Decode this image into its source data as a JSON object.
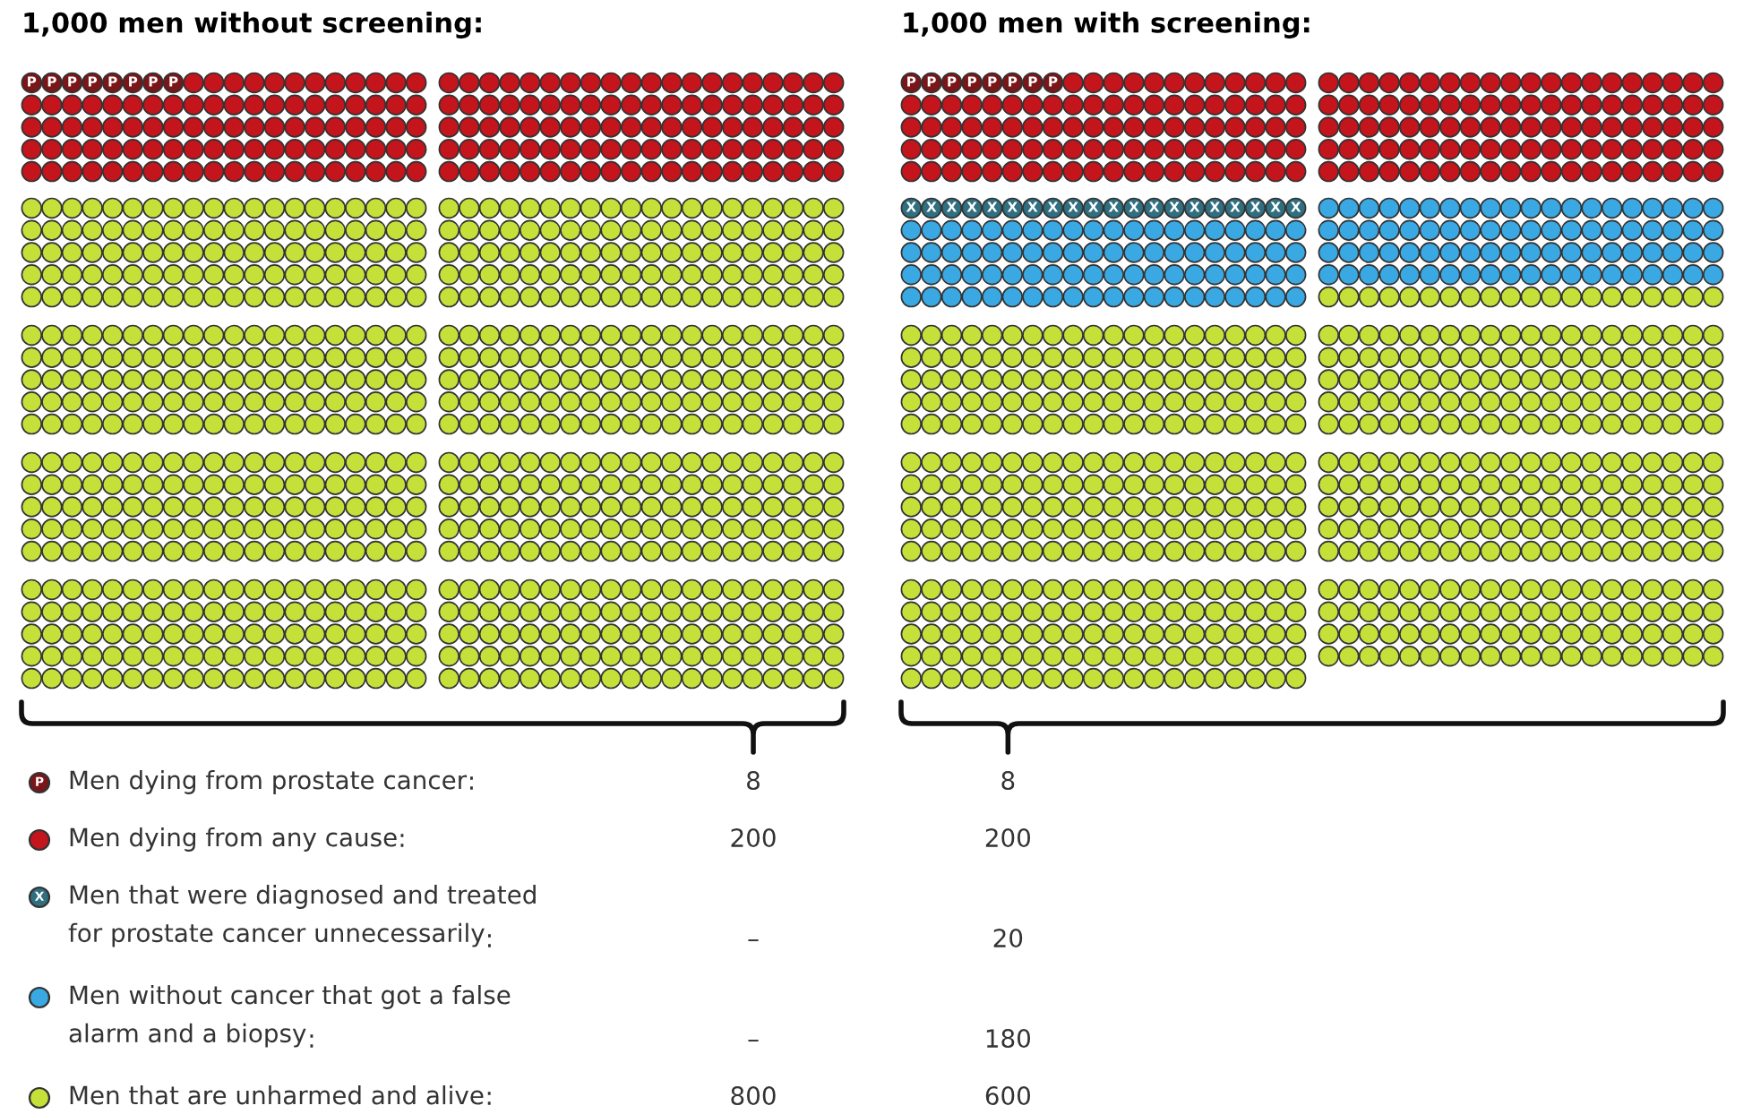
{
  "chart_data": {
    "type": "other",
    "categories": [
      "Men dying from prostate cancer",
      "Men dying from any cause",
      "Men that were diagnosed and treated\nfor prostate cancer unnecessarily",
      "Men without cancer that got a false\nalarm and a biopsy",
      "Men that are unharmed and alive"
    ],
    "colors": [
      "#7a1518",
      "#c4141c",
      "#2f6f80",
      "#3aa8e2",
      "#c6e03a"
    ],
    "cell_labels": [
      "P",
      null,
      "X",
      null,
      null
    ],
    "data_labels": true,
    "annotations": [
      ":",
      "–"
    ],
    "series": [
      {
        "name": "1,000 men without screening:",
        "values": [
          8,
          200,
          null,
          null,
          800
        ]
      },
      {
        "name": "1,000 men with screening:",
        "values": [
          8,
          200,
          20,
          180,
          600
        ]
      }
    ]
  }
}
